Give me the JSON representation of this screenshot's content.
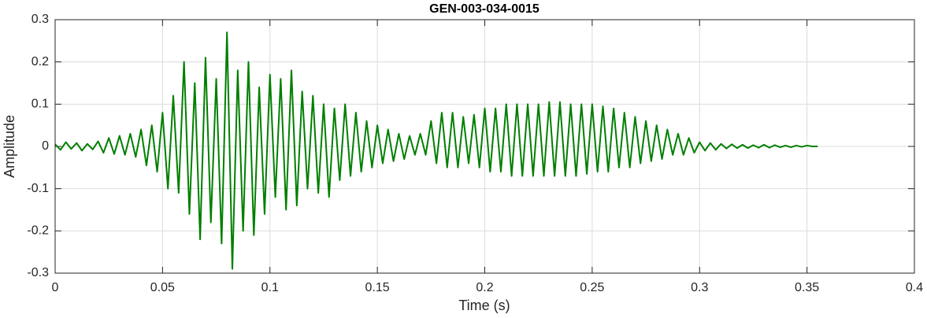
{
  "chart_data": {
    "type": "line",
    "title": "GEN-003-034-0015",
    "x_label": "Time (s)",
    "y_label": "Amplitude",
    "color": "#007f00",
    "grid": true,
    "xlim": [
      0,
      0.4
    ],
    "ylim": [
      -0.3,
      0.3
    ],
    "xticks": [
      0,
      0.05,
      0.1,
      0.15,
      0.2,
      0.25,
      0.3,
      0.35,
      0.4
    ],
    "yticks": [
      -0.3,
      -0.2,
      -0.1,
      0,
      0.1,
      0.2,
      0.3
    ],
    "x": [
      0,
      0.0025,
      0.005,
      0.0075,
      0.01,
      0.0125,
      0.015,
      0.0175,
      0.02,
      0.0225,
      0.025,
      0.0275,
      0.03,
      0.0325,
      0.035,
      0.0375,
      0.04,
      0.0425,
      0.045,
      0.0475,
      0.05,
      0.0525,
      0.055,
      0.0575,
      0.06,
      0.0625,
      0.065,
      0.0675,
      0.07,
      0.0725,
      0.075,
      0.0775,
      0.08,
      0.0825,
      0.085,
      0.0875,
      0.09,
      0.0925,
      0.095,
      0.0975,
      0.1,
      0.1025,
      0.105,
      0.1075,
      0.11,
      0.1125,
      0.115,
      0.1175,
      0.12,
      0.1225,
      0.125,
      0.1275,
      0.13,
      0.1325,
      0.135,
      0.1375,
      0.14,
      0.1425,
      0.145,
      0.1475,
      0.15,
      0.1525,
      0.155,
      0.1575,
      0.16,
      0.1625,
      0.165,
      0.1675,
      0.17,
      0.1725,
      0.175,
      0.1775,
      0.18,
      0.1825,
      0.185,
      0.1875,
      0.19,
      0.1925,
      0.195,
      0.1975,
      0.2,
      0.2025,
      0.205,
      0.2075,
      0.21,
      0.2125,
      0.215,
      0.2175,
      0.22,
      0.2225,
      0.225,
      0.2275,
      0.23,
      0.2325,
      0.235,
      0.2375,
      0.24,
      0.2425,
      0.245,
      0.2475,
      0.25,
      0.2525,
      0.255,
      0.2575,
      0.26,
      0.2625,
      0.265,
      0.2675,
      0.27,
      0.2725,
      0.275,
      0.2775,
      0.28,
      0.2825,
      0.285,
      0.2875,
      0.29,
      0.2925,
      0.295,
      0.2975,
      0.3,
      0.3025,
      0.305,
      0.3075,
      0.31,
      0.3125,
      0.315,
      0.3175,
      0.32,
      0.3225,
      0.325,
      0.3275,
      0.33,
      0.3325,
      0.335,
      0.3375,
      0.34,
      0.3425,
      0.345,
      0.3475,
      0.35,
      0.3525,
      0.355
    ],
    "values": [
      0.005,
      -0.008,
      0.01,
      -0.006,
      0.008,
      -0.01,
      0.006,
      -0.007,
      0.012,
      -0.015,
      0.02,
      -0.018,
      0.025,
      -0.02,
      0.03,
      -0.025,
      0.04,
      -0.045,
      0.05,
      -0.06,
      0.08,
      -0.1,
      0.12,
      -0.11,
      0.2,
      -0.16,
      0.15,
      -0.22,
      0.21,
      -0.18,
      0.16,
      -0.23,
      0.27,
      -0.29,
      0.18,
      -0.2,
      0.2,
      -0.21,
      0.14,
      -0.16,
      0.17,
      -0.12,
      0.16,
      -0.15,
      0.18,
      -0.14,
      0.13,
      -0.1,
      0.12,
      -0.11,
      0.1,
      -0.12,
      0.09,
      -0.08,
      0.1,
      -0.07,
      0.08,
      -0.06,
      0.06,
      -0.05,
      0.05,
      -0.04,
      0.04,
      -0.035,
      0.03,
      -0.03,
      0.025,
      -0.02,
      0.03,
      -0.02,
      0.06,
      -0.04,
      0.08,
      -0.05,
      0.08,
      -0.05,
      0.07,
      -0.04,
      0.075,
      -0.05,
      0.09,
      -0.06,
      0.09,
      -0.06,
      0.1,
      -0.07,
      0.1,
      -0.07,
      0.1,
      -0.07,
      0.1,
      -0.07,
      0.105,
      -0.07,
      0.105,
      -0.07,
      0.1,
      -0.07,
      0.1,
      -0.065,
      0.1,
      -0.06,
      0.095,
      -0.06,
      0.09,
      -0.05,
      0.08,
      -0.05,
      0.07,
      -0.04,
      0.06,
      -0.035,
      0.05,
      -0.03,
      0.04,
      -0.02,
      0.03,
      -0.02,
      0.02,
      -0.015,
      0.01,
      -0.01,
      0.008,
      -0.008,
      0.006,
      -0.005,
      0.005,
      -0.004,
      0.004,
      -0.004,
      0.003,
      -0.003,
      0.004,
      -0.003,
      0.003,
      -0.002,
      0.002,
      -0.002,
      0.002,
      -0.001,
      0.002,
      0,
      0
    ]
  }
}
